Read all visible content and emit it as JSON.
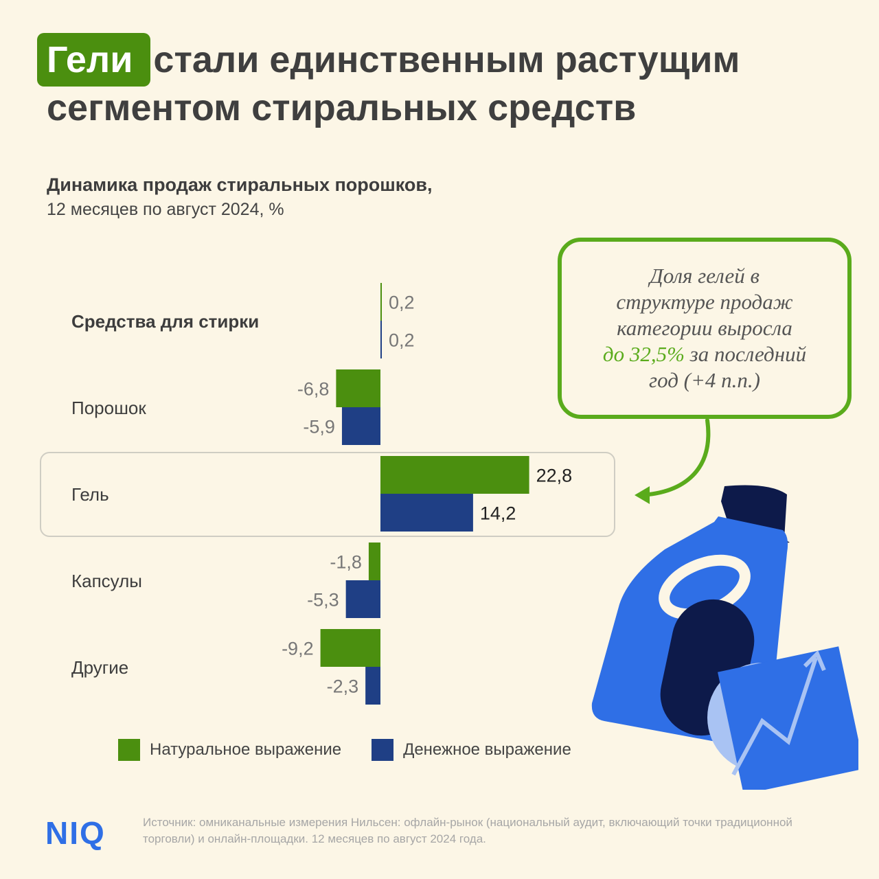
{
  "headline": {
    "badge": "Гели",
    "line1_rest": "стали единственным растущим",
    "line2": "сегментом стиральных средств"
  },
  "chart_data": {
    "type": "bar",
    "orientation": "horizontal",
    "title": "Динамика продаж стиральных порошков,",
    "subtitle": "12 месяцев по август 2024, %",
    "categories": [
      "Средства для стирки",
      "Порошок",
      "Гель",
      "Капсулы",
      "Другие"
    ],
    "series": [
      {
        "name": "Натуральное выражение",
        "color": "#4b8f0f",
        "values": [
          0.2,
          -6.8,
          22.8,
          -1.8,
          -9.2
        ]
      },
      {
        "name": "Денежное выражение",
        "color": "#1f3f85",
        "values": [
          0.2,
          -5.9,
          14.2,
          -5.3,
          -2.3
        ]
      }
    ],
    "labels": [
      [
        "0,2",
        "-6,8",
        "22,8",
        "-1,8",
        "-9,2"
      ],
      [
        "0,2",
        "-5,9",
        "14,2",
        "-5,3",
        "-2,3"
      ]
    ],
    "highlight_category": "Гель",
    "bold_category": "Средства для стирки",
    "legend_position": "bottom"
  },
  "callout": {
    "line1": "Доля гелей в",
    "line2": "структуре продаж",
    "line3": "категории выросла",
    "line4_highlight": "до 32,5%",
    "line4_rest": "за последний",
    "line5": "год (+4 п.п.)"
  },
  "footer": {
    "logo": "NIQ",
    "source": "Источник: омниканальные измерения Нильсен: офлайн-рынок (национальный аудит, включающий точки традиционной торговли) и онлайн-площадки. 12 месяцев по август 2024 года."
  },
  "colors": {
    "background": "#fcf6e6",
    "green": "#4b8f0f",
    "navy": "#1f3f85",
    "accent_green": "#5aab1c",
    "logo_blue": "#2f6fe6"
  }
}
